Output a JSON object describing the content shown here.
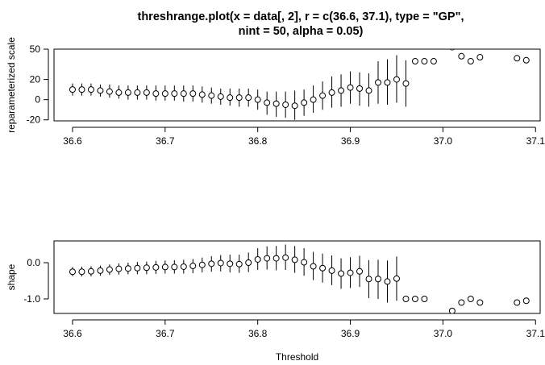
{
  "title_lines": [
    "threshrange.plot(x = data[, 2], r = c(36.6, 37.1), type = \"GP\",",
    "nint = 50, alpha = 0.05)"
  ],
  "chart_data": [
    {
      "type": "scatter",
      "title": "threshrange.plot(x = data[, 2], r = c(36.6, 37.1), type = \"GP\", nint = 50, alpha = 0.05)",
      "xlabel": "Threshold",
      "ylabel": "reparameterized scale",
      "xlim": [
        36.58,
        37.105
      ],
      "ylim": [
        -21,
        50
      ],
      "xticks": [
        36.6,
        36.7,
        36.8,
        36.9,
        37.0,
        37.1
      ],
      "xtick_labels": [
        "36.6",
        "36.7",
        "36.8",
        "36.9",
        "37.0",
        "37.1"
      ],
      "yticks": [
        -20,
        0,
        20,
        50
      ],
      "ytick_labels": [
        "-20",
        "0",
        "20",
        "50"
      ],
      "grid": false,
      "legend": "none",
      "points": [
        {
          "x": 36.6,
          "y": 10,
          "lo": 4,
          "hi": 16
        },
        {
          "x": 36.61,
          "y": 10,
          "lo": 4,
          "hi": 16
        },
        {
          "x": 36.62,
          "y": 10,
          "lo": 4,
          "hi": 16
        },
        {
          "x": 36.63,
          "y": 9,
          "lo": 3,
          "hi": 15
        },
        {
          "x": 36.64,
          "y": 8,
          "lo": 2,
          "hi": 15
        },
        {
          "x": 36.65,
          "y": 7,
          "lo": 1,
          "hi": 14
        },
        {
          "x": 36.66,
          "y": 7,
          "lo": 0,
          "hi": 14
        },
        {
          "x": 36.67,
          "y": 7,
          "lo": 0,
          "hi": 14
        },
        {
          "x": 36.68,
          "y": 7,
          "lo": 0,
          "hi": 14
        },
        {
          "x": 36.69,
          "y": 6,
          "lo": -1,
          "hi": 14
        },
        {
          "x": 36.7,
          "y": 6,
          "lo": -1,
          "hi": 14
        },
        {
          "x": 36.71,
          "y": 6,
          "lo": -1,
          "hi": 14
        },
        {
          "x": 36.72,
          "y": 6,
          "lo": -2,
          "hi": 14
        },
        {
          "x": 36.73,
          "y": 6,
          "lo": -2,
          "hi": 14
        },
        {
          "x": 36.74,
          "y": 5,
          "lo": -3,
          "hi": 13
        },
        {
          "x": 36.75,
          "y": 4,
          "lo": -4,
          "hi": 12
        },
        {
          "x": 36.76,
          "y": 3,
          "lo": -5,
          "hi": 11
        },
        {
          "x": 36.77,
          "y": 2,
          "lo": -6,
          "hi": 11
        },
        {
          "x": 36.78,
          "y": 2,
          "lo": -7,
          "hi": 11
        },
        {
          "x": 36.79,
          "y": 2,
          "lo": -7,
          "hi": 11
        },
        {
          "x": 36.8,
          "y": 0,
          "lo": -10,
          "hi": 10
        },
        {
          "x": 36.81,
          "y": -3,
          "lo": -15,
          "hi": 8
        },
        {
          "x": 36.82,
          "y": -4,
          "lo": -17,
          "hi": 8
        },
        {
          "x": 36.83,
          "y": -5,
          "lo": -18,
          "hi": 8
        },
        {
          "x": 36.84,
          "y": -6,
          "lo": -20,
          "hi": 9
        },
        {
          "x": 36.85,
          "y": -3,
          "lo": -16,
          "hi": 10
        },
        {
          "x": 36.86,
          "y": 0,
          "lo": -13,
          "hi": 14
        },
        {
          "x": 36.87,
          "y": 4,
          "lo": -10,
          "hi": 18
        },
        {
          "x": 36.88,
          "y": 7,
          "lo": -8,
          "hi": 23
        },
        {
          "x": 36.89,
          "y": 9,
          "lo": -7,
          "hi": 25
        },
        {
          "x": 36.9,
          "y": 12,
          "lo": -4,
          "hi": 28
        },
        {
          "x": 36.91,
          "y": 11,
          "lo": -6,
          "hi": 27
        },
        {
          "x": 36.92,
          "y": 9,
          "lo": -7,
          "hi": 26
        },
        {
          "x": 36.93,
          "y": 17,
          "lo": -4,
          "hi": 38
        },
        {
          "x": 36.94,
          "y": 17,
          "lo": -5,
          "hi": 40
        },
        {
          "x": 36.95,
          "y": 20,
          "lo": -3,
          "hi": 44
        },
        {
          "x": 36.96,
          "y": 16,
          "lo": -7,
          "hi": 39
        },
        {
          "x": 36.97,
          "y": 38,
          "lo": null,
          "hi": null
        },
        {
          "x": 36.98,
          "y": 38,
          "lo": null,
          "hi": null
        },
        {
          "x": 36.99,
          "y": 38,
          "lo": null,
          "hi": null
        },
        {
          "x": 37.01,
          "y": 52,
          "lo": null,
          "hi": null
        },
        {
          "x": 37.02,
          "y": 43,
          "lo": null,
          "hi": null
        },
        {
          "x": 37.03,
          "y": 38,
          "lo": null,
          "hi": null
        },
        {
          "x": 37.04,
          "y": 42,
          "lo": null,
          "hi": null
        },
        {
          "x": 37.08,
          "y": 41,
          "lo": null,
          "hi": null
        },
        {
          "x": 37.09,
          "y": 39,
          "lo": null,
          "hi": null
        }
      ]
    },
    {
      "type": "scatter",
      "xlabel": "Threshold",
      "ylabel": "shape",
      "xlim": [
        36.58,
        37.105
      ],
      "ylim": [
        -1.4,
        0.6
      ],
      "xticks": [
        36.6,
        36.7,
        36.8,
        36.9,
        37.0,
        37.1
      ],
      "xtick_labels": [
        "36.6",
        "36.7",
        "36.8",
        "36.9",
        "37.0",
        "37.1"
      ],
      "yticks": [
        -1.0,
        0.0
      ],
      "ytick_labels": [
        "-1.0",
        "0.0"
      ],
      "grid": false,
      "legend": "none",
      "points": [
        {
          "x": 36.6,
          "y": -0.25,
          "lo": -0.37,
          "hi": -0.12
        },
        {
          "x": 36.61,
          "y": -0.25,
          "lo": -0.38,
          "hi": -0.11
        },
        {
          "x": 36.62,
          "y": -0.24,
          "lo": -0.38,
          "hi": -0.1
        },
        {
          "x": 36.63,
          "y": -0.22,
          "lo": -0.36,
          "hi": -0.08
        },
        {
          "x": 36.64,
          "y": -0.19,
          "lo": -0.34,
          "hi": -0.05
        },
        {
          "x": 36.65,
          "y": -0.17,
          "lo": -0.33,
          "hi": -0.02
        },
        {
          "x": 36.66,
          "y": -0.16,
          "lo": -0.32,
          "hi": 0.0
        },
        {
          "x": 36.67,
          "y": -0.15,
          "lo": -0.32,
          "hi": 0.02
        },
        {
          "x": 36.68,
          "y": -0.14,
          "lo": -0.32,
          "hi": 0.03
        },
        {
          "x": 36.69,
          "y": -0.13,
          "lo": -0.31,
          "hi": 0.05
        },
        {
          "x": 36.7,
          "y": -0.12,
          "lo": -0.3,
          "hi": 0.06
        },
        {
          "x": 36.71,
          "y": -0.12,
          "lo": -0.3,
          "hi": 0.07
        },
        {
          "x": 36.72,
          "y": -0.11,
          "lo": -0.3,
          "hi": 0.08
        },
        {
          "x": 36.73,
          "y": -0.09,
          "lo": -0.29,
          "hi": 0.1
        },
        {
          "x": 36.74,
          "y": -0.06,
          "lo": -0.27,
          "hi": 0.14
        },
        {
          "x": 36.75,
          "y": -0.03,
          "lo": -0.25,
          "hi": 0.18
        },
        {
          "x": 36.76,
          "y": -0.01,
          "lo": -0.24,
          "hi": 0.21
        },
        {
          "x": 36.77,
          "y": -0.03,
          "lo": -0.27,
          "hi": 0.22
        },
        {
          "x": 36.78,
          "y": -0.04,
          "lo": -0.28,
          "hi": 0.22
        },
        {
          "x": 36.79,
          "y": 0.0,
          "lo": -0.26,
          "hi": 0.28
        },
        {
          "x": 36.8,
          "y": 0.09,
          "lo": -0.2,
          "hi": 0.4
        },
        {
          "x": 36.81,
          "y": 0.12,
          "lo": -0.19,
          "hi": 0.45
        },
        {
          "x": 36.82,
          "y": 0.12,
          "lo": -0.21,
          "hi": 0.46
        },
        {
          "x": 36.83,
          "y": 0.14,
          "lo": -0.2,
          "hi": 0.5
        },
        {
          "x": 36.84,
          "y": 0.08,
          "lo": -0.28,
          "hi": 0.46
        },
        {
          "x": 36.85,
          "y": 0.01,
          "lo": -0.36,
          "hi": 0.4
        },
        {
          "x": 36.86,
          "y": -0.1,
          "lo": -0.48,
          "hi": 0.3
        },
        {
          "x": 36.87,
          "y": -0.15,
          "lo": -0.55,
          "hi": 0.25
        },
        {
          "x": 36.88,
          "y": -0.22,
          "lo": -0.62,
          "hi": 0.2
        },
        {
          "x": 36.89,
          "y": -0.3,
          "lo": -0.72,
          "hi": 0.12
        },
        {
          "x": 36.9,
          "y": -0.28,
          "lo": -0.7,
          "hi": 0.15
        },
        {
          "x": 36.91,
          "y": -0.24,
          "lo": -0.67,
          "hi": 0.19
        },
        {
          "x": 36.92,
          "y": -0.45,
          "lo": -0.98,
          "hi": 0.07
        },
        {
          "x": 36.93,
          "y": -0.45,
          "lo": -1.0,
          "hi": 0.08
        },
        {
          "x": 36.94,
          "y": -0.52,
          "lo": -1.1,
          "hi": 0.06
        },
        {
          "x": 36.95,
          "y": -0.44,
          "lo": -1.05,
          "hi": 0.17
        },
        {
          "x": 36.96,
          "y": -1.0,
          "lo": null,
          "hi": null
        },
        {
          "x": 36.97,
          "y": -1.0,
          "lo": null,
          "hi": null
        },
        {
          "x": 36.98,
          "y": -1.0,
          "lo": null,
          "hi": null
        },
        {
          "x": 37.01,
          "y": -1.33,
          "lo": null,
          "hi": null
        },
        {
          "x": 37.02,
          "y": -1.1,
          "lo": null,
          "hi": null
        },
        {
          "x": 37.03,
          "y": -1.0,
          "lo": null,
          "hi": null
        },
        {
          "x": 37.04,
          "y": -1.1,
          "lo": null,
          "hi": null
        },
        {
          "x": 37.08,
          "y": -1.1,
          "lo": null,
          "hi": null
        },
        {
          "x": 37.09,
          "y": -1.05,
          "lo": null,
          "hi": null
        }
      ]
    }
  ]
}
